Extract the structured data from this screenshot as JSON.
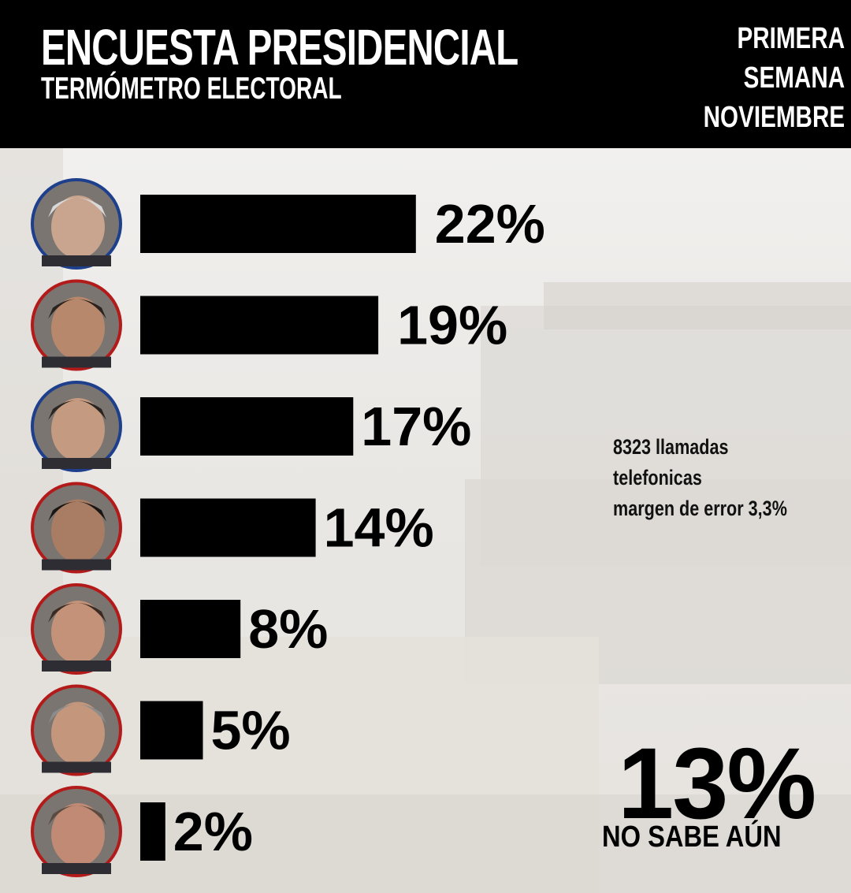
{
  "header": {
    "title": "ENCUESTA PRESIDENCIAL",
    "subtitle": "TERMÓMETRO ELECTORAL",
    "period": [
      "PRIMERA",
      "SEMANA",
      "NOVIEMBRE"
    ]
  },
  "note": [
    "8323 llamadas",
    "telefonicas",
    "margen de error 3,3%"
  ],
  "undecided": {
    "value": "13%",
    "label": "NO SABE AÚN"
  },
  "colors": {
    "header_bg": "#000000",
    "bar": "#000000",
    "text": "#000000"
  },
  "chart_data": {
    "type": "bar",
    "orientation": "horizontal",
    "values": [
      22,
      19,
      17,
      14,
      8,
      5,
      2
    ],
    "value_labels": [
      "22%",
      "19%",
      "17%",
      "14%",
      "8%",
      "5%",
      "2%"
    ],
    "unit": "%"
  }
}
